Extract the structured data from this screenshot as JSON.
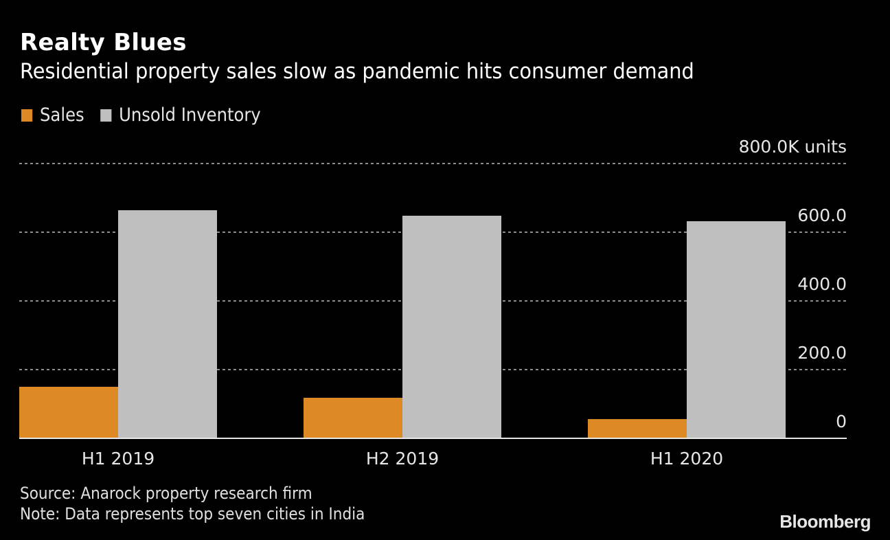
{
  "chart_data": {
    "type": "bar",
    "title": "Realty Blues",
    "subtitle": "Residential property sales slow as pandemic hits consumer demand",
    "categories": [
      "H1 2019",
      "H2 2019",
      "H1 2020"
    ],
    "series": [
      {
        "name": "Sales",
        "color": "#dd8a24",
        "values": [
          150,
          118,
          56
        ]
      },
      {
        "name": "Unsold Inventory",
        "color": "#bfbfbf",
        "values": [
          664,
          648,
          632
        ]
      }
    ],
    "xlabel": "",
    "ylabel": "",
    "unit_label": "800.0K units",
    "ylim": [
      0,
      800
    ],
    "yticks": [
      0,
      200,
      400,
      600,
      800
    ],
    "ytick_labels": [
      "0",
      "200.0",
      "400.0",
      "600.0",
      "800.0K units"
    ],
    "grid": true,
    "legend_position": "top-left",
    "y_axis_side": "right"
  },
  "footer": {
    "source": "Source: Anarock property research firm",
    "note": "Note: Data represents top seven cities in India"
  },
  "branding": {
    "logo_text": "Bloomberg"
  },
  "colors": {
    "background": "#000000",
    "sales": "#dd8a24",
    "inventory": "#bfbfbf",
    "grid": "#8a8a8a",
    "text": "#e6e6e6"
  }
}
